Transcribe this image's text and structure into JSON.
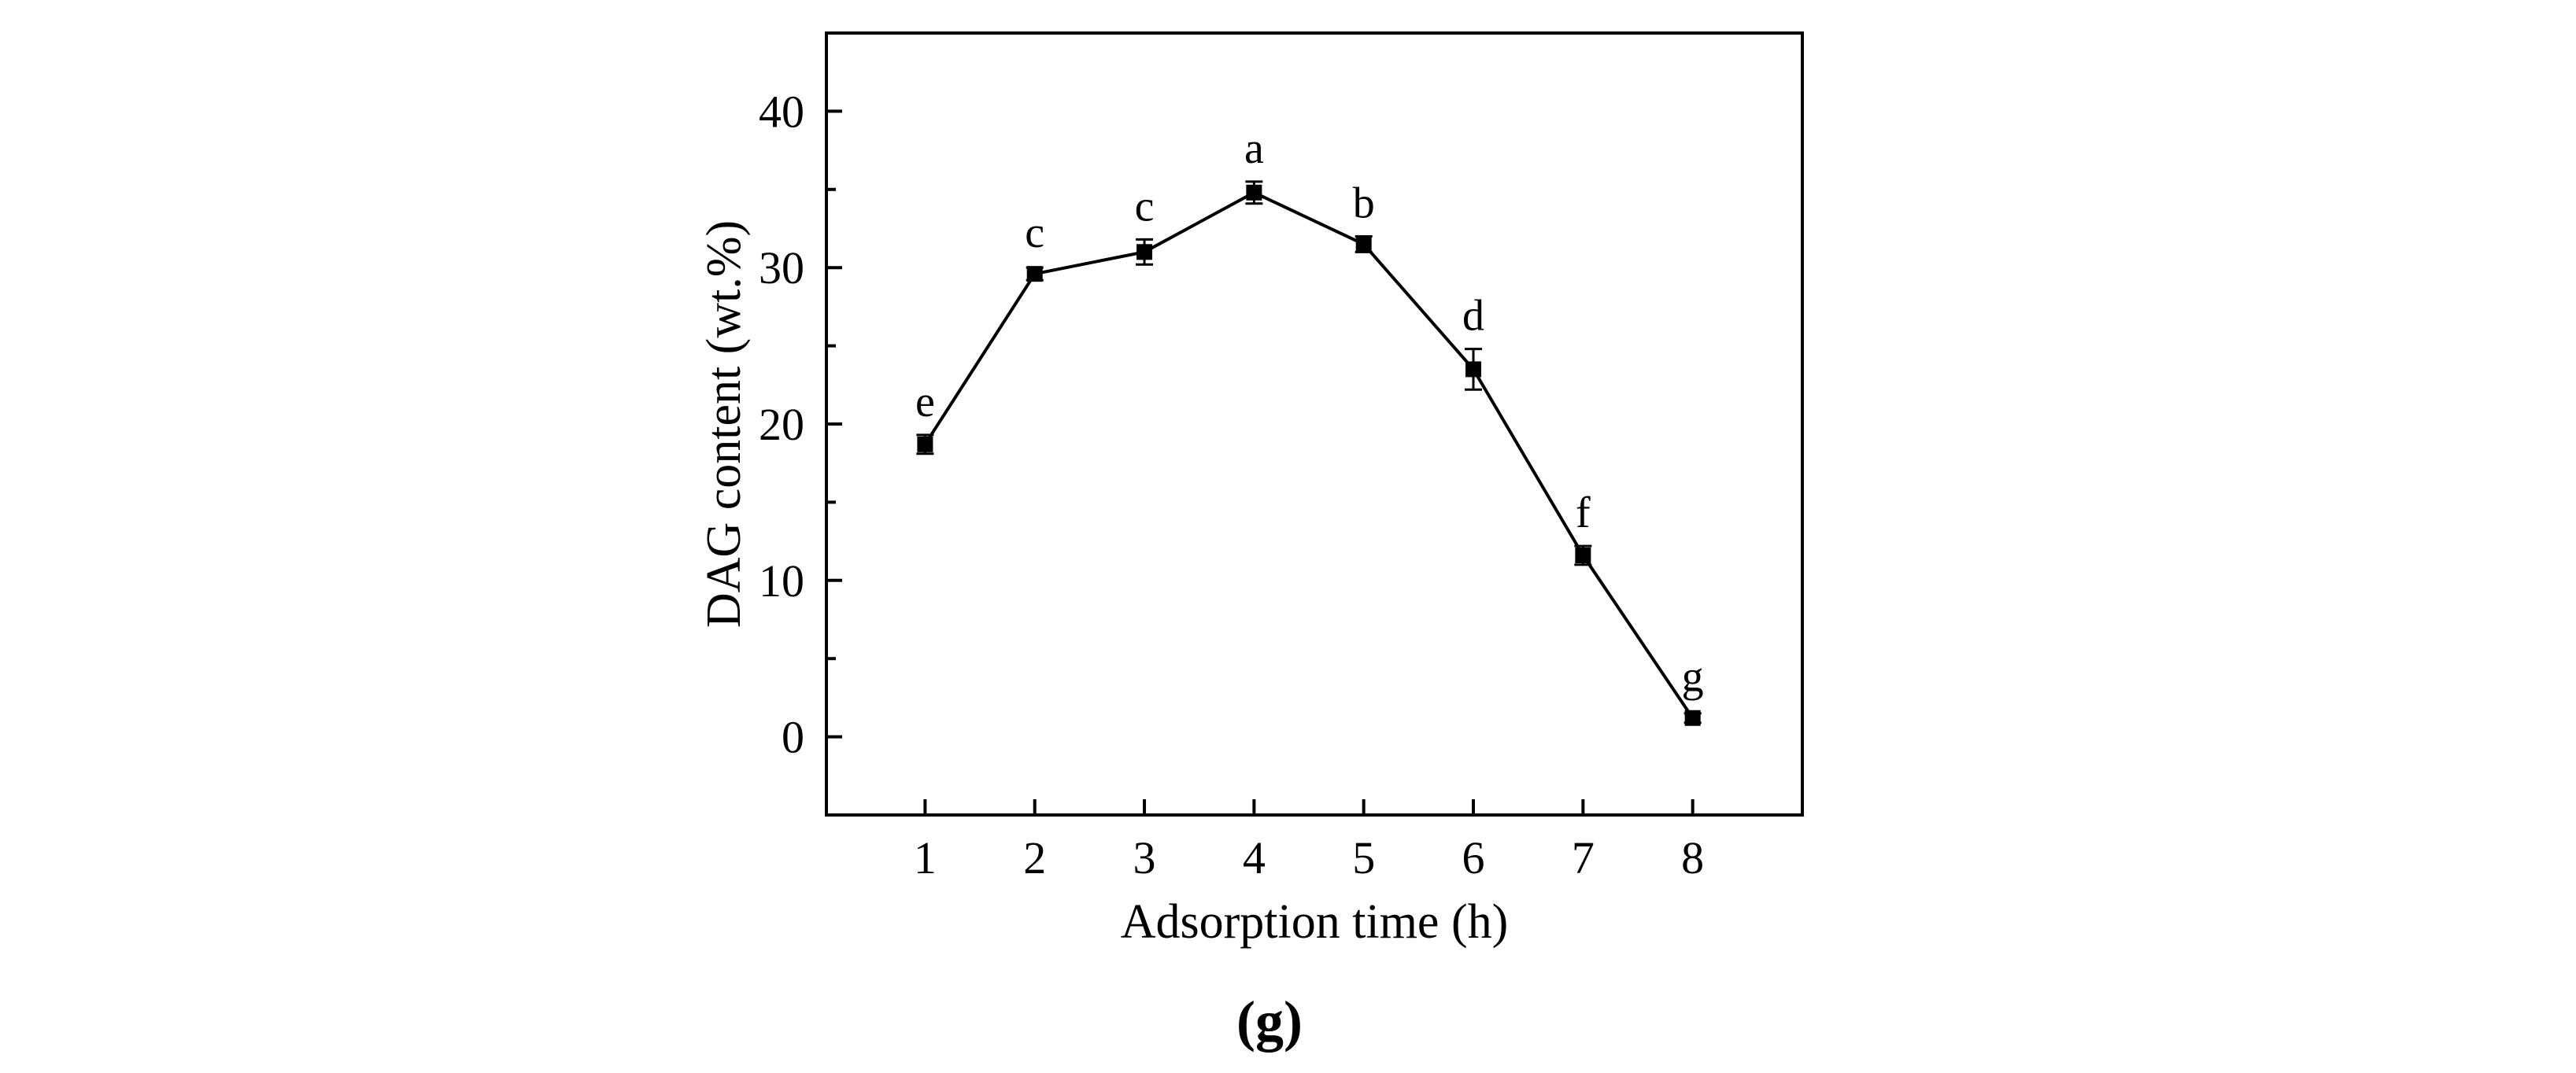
{
  "chart_data": {
    "type": "line",
    "xlabel": "Adsorption time (h)",
    "ylabel": "DAG content (wt.%)",
    "panel_label": "(g)",
    "xlim": [
      0.1,
      9.0
    ],
    "ylim": [
      -5,
      45
    ],
    "x_ticks": [
      1,
      2,
      3,
      4,
      5,
      6,
      7,
      8
    ],
    "y_ticks": [
      0,
      10,
      20,
      30,
      40
    ],
    "y_minor_ticks": [
      -5,
      5,
      15,
      25,
      35
    ],
    "x": [
      1,
      2,
      3,
      4,
      5,
      6,
      7,
      8
    ],
    "series": [
      {
        "values": [
          18.7,
          29.6,
          31.0,
          34.8,
          31.5,
          23.5,
          11.6,
          1.2
        ],
        "errors": [
          0.6,
          0.4,
          0.8,
          0.7,
          0.5,
          1.3,
          0.6,
          0.3
        ],
        "significance": [
          "e",
          "c",
          "c",
          "a",
          "b",
          "d",
          "f",
          "g"
        ],
        "marker": "square",
        "color": "#000000"
      }
    ],
    "grid": false,
    "legend": "none"
  }
}
